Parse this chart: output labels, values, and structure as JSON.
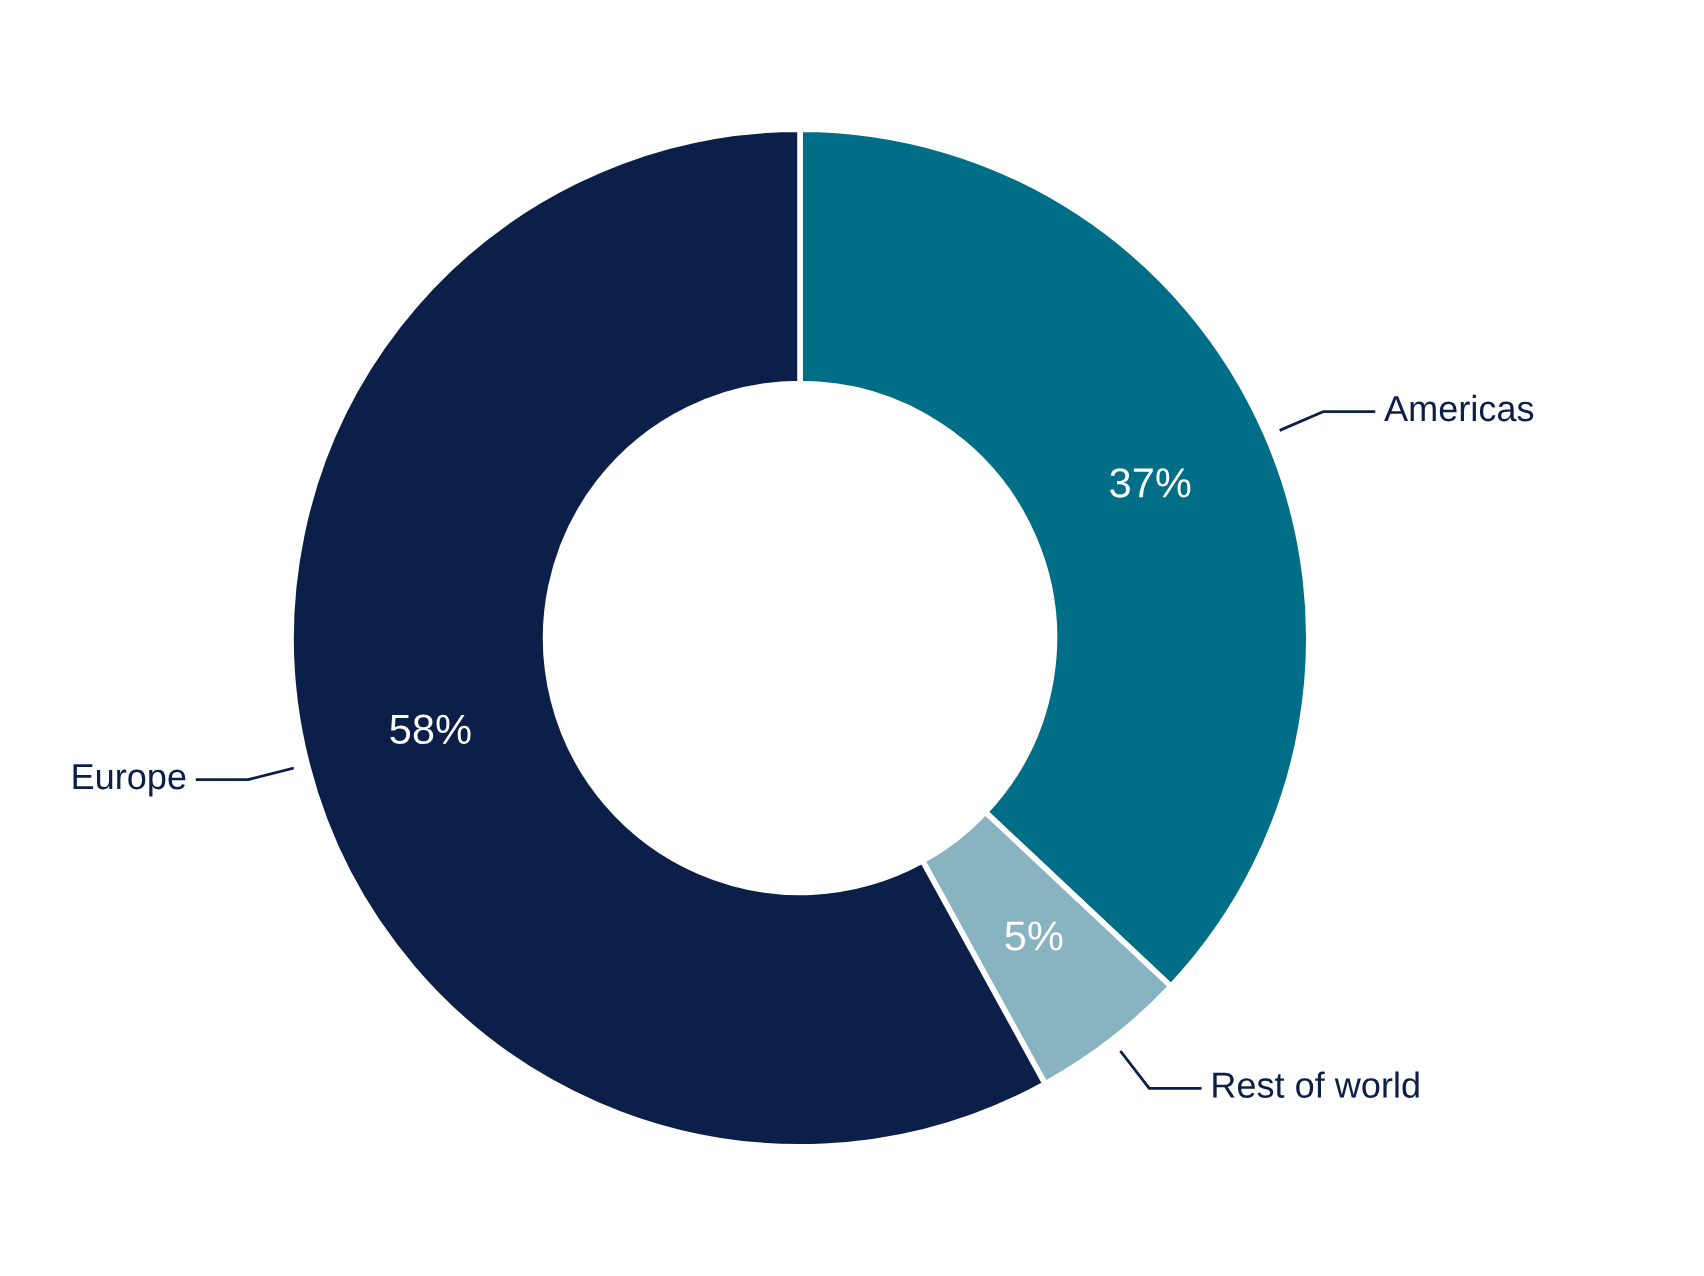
{
  "chart_data": {
    "type": "donut",
    "categories": [
      "Americas",
      "Rest of world",
      "Europe"
    ],
    "values": [
      37,
      5,
      58
    ],
    "colors": [
      "#006e87",
      "#88b3c0",
      "#0b1f48"
    ],
    "value_labels": [
      "37%",
      "5%",
      "58%"
    ],
    "legend": false
  }
}
